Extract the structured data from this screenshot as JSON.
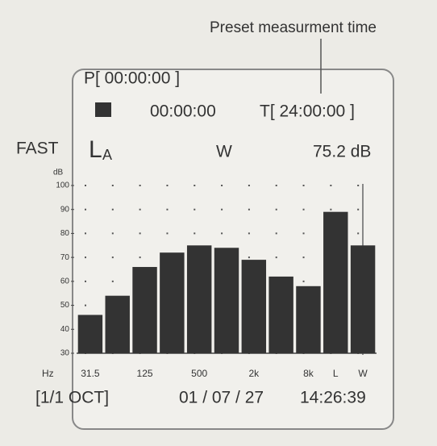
{
  "annotation": "Preset measurment time",
  "header": {
    "preset": "P[ 00:00:00 ]",
    "elapsed": "00:00:00",
    "timer": "T[ 24:00:00 ]"
  },
  "status": {
    "response": "FAST",
    "quantity": "L",
    "weighting_sub": "A",
    "band_mode": "W",
    "level": "75.2 dB"
  },
  "footer": {
    "band": "[1/1  OCT]",
    "date": "01 / 07 / 27",
    "time": "14:26:39"
  },
  "chart_data": {
    "type": "bar",
    "y_label": "dB",
    "x_label": "Hz",
    "categories": [
      "31.5",
      null,
      "125",
      null,
      "500",
      null,
      "2k",
      null,
      "8k",
      "L",
      "W"
    ],
    "values": [
      46,
      54,
      66,
      72,
      75,
      74,
      69,
      62,
      58,
      89,
      75
    ],
    "color": "#333333",
    "ylim": [
      30,
      100
    ],
    "yticks": [
      30,
      40,
      50,
      60,
      70,
      80,
      90,
      100
    ],
    "grid": true
  }
}
